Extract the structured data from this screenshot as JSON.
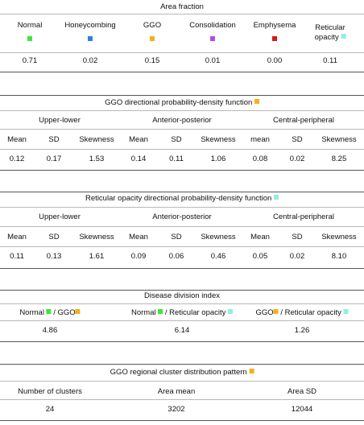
{
  "colors": {
    "normal": "#3ee636",
    "honeycombing": "#2f7ee8",
    "ggo": "#f2b21a",
    "consolidation": "#b64ce3",
    "emphysema": "#d7161d",
    "reticular_opacity": "#8ff0dd"
  },
  "area_fraction": {
    "title": "Area fraction",
    "categories": [
      {
        "label": "Normal",
        "value": "0.71",
        "color": "normal"
      },
      {
        "label": "Honeycombing",
        "value": "0.02",
        "color": "honeycombing"
      },
      {
        "label": "GGO",
        "value": "0.15",
        "color": "ggo"
      },
      {
        "label": "Consolidation",
        "value": "0.01",
        "color": "consolidation"
      },
      {
        "label": "Emphysema",
        "value": "0.00",
        "color": "emphysema"
      },
      {
        "label_line1": "Reticular",
        "label_line2": "opacity",
        "value": "0.11",
        "color": "reticular_opacity"
      }
    ]
  },
  "ggo_pdf": {
    "title": "GGO directional probability-density function",
    "groups": [
      "Upper-lower",
      "Anterior-posterior",
      "Central-peripheral"
    ],
    "headers": [
      "Mean",
      "SD",
      "Skewness",
      "Mean",
      "SD",
      "Skewness",
      "mean",
      "SD",
      "Skewness"
    ],
    "values": [
      "0.12",
      "0.17",
      "1.53",
      "0.14",
      "0.11",
      "1.06",
      "0.08",
      "0.02",
      "8.25"
    ]
  },
  "reticular_pdf": {
    "title": "Reticular opacity directional probability-density function",
    "groups": [
      "Upper-lower",
      "Anterior-posterior",
      "Central-peripheral"
    ],
    "headers": [
      "Mean",
      "SD",
      "Skewness",
      "Mean",
      "SD",
      "Skewness",
      "Mean",
      "SD",
      "Skewness"
    ],
    "values": [
      "0.11",
      "0.13",
      "1.61",
      "0.09",
      "0.06",
      "0.46",
      "0.05",
      "0.02",
      "8.10"
    ]
  },
  "disease_division": {
    "title": "Disease division index",
    "items": [
      {
        "left": "Normal",
        "sep": "/ ",
        "right": "GGO",
        "value": "4.86"
      },
      {
        "left": "Normal",
        "sep": "/ ",
        "right": "Reticular opacity",
        "value": "6.14"
      },
      {
        "left": "GGO",
        "sep": "/ ",
        "right": "Reticular opacity",
        "value": "1.26"
      }
    ]
  },
  "cluster": {
    "title": "GGO regional cluster distribution pattern",
    "headers": [
      "Number of clusters",
      "Area mean",
      "Area SD"
    ],
    "values": [
      "24",
      "3202",
      "12044"
    ]
  }
}
